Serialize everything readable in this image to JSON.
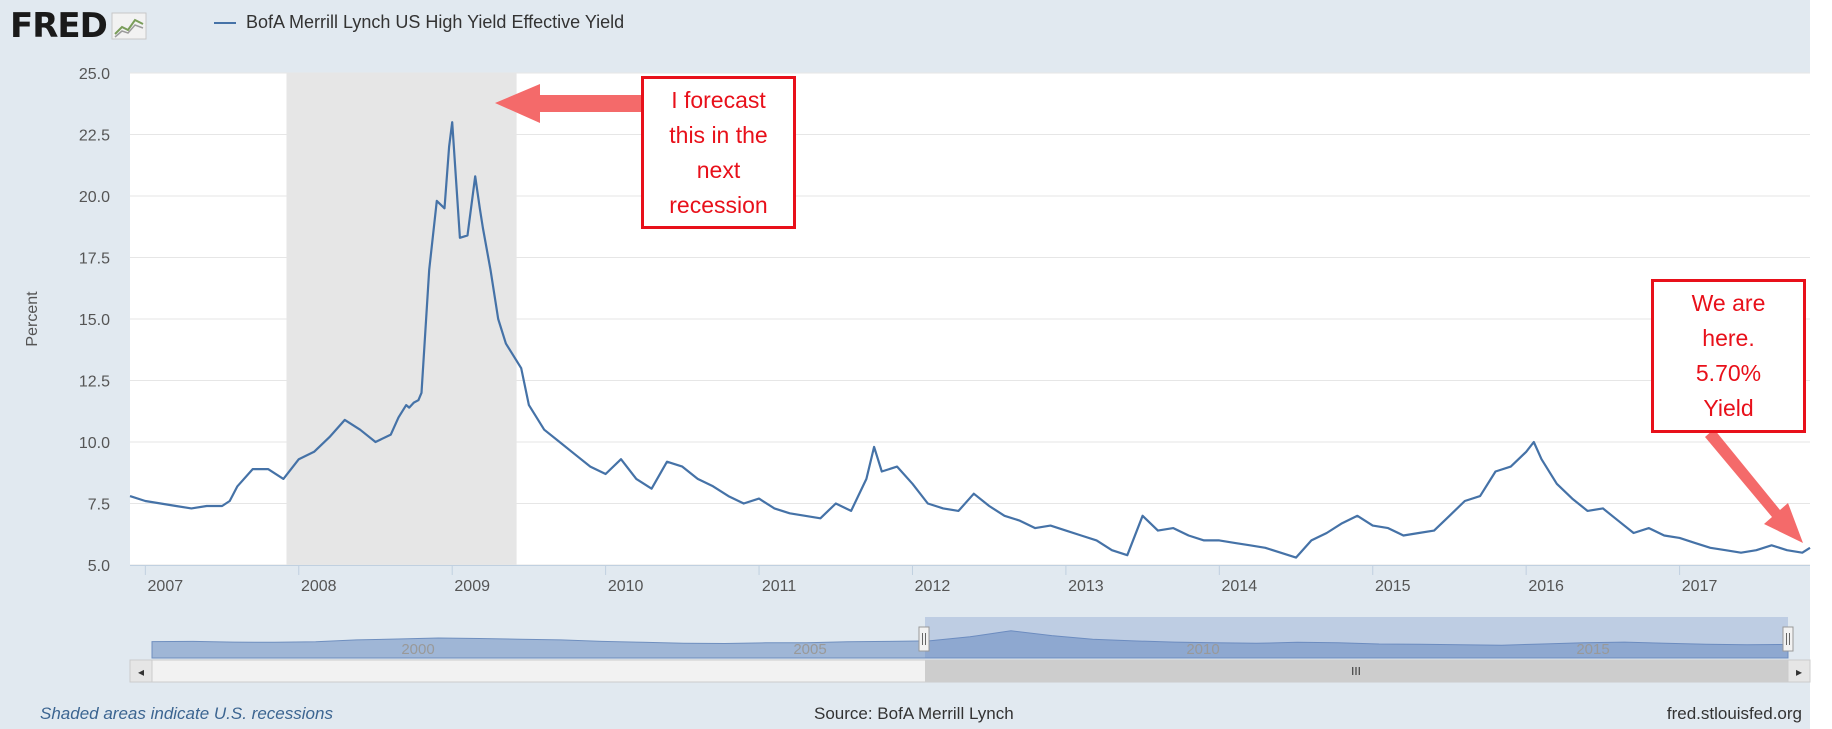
{
  "header": {
    "logo_text": "FRED",
    "logo_icon": "fred-chart-icon",
    "series_label": "BofA Merrill Lynch US High Yield Effective Yield"
  },
  "annotations": {
    "forecast_lines": [
      "I forecast",
      "this in the",
      "next",
      "recession"
    ],
    "current_lines": [
      "We are",
      "here.",
      "5.70%",
      "Yield"
    ]
  },
  "footer": {
    "note": "Shaded areas indicate U.S. recessions",
    "source": "Source: BofA Merrill Lynch",
    "site": "fred.stlouisfed.org"
  },
  "colors": {
    "series": "#4572a7",
    "recession": "#e6e6e6",
    "annotation": "#e8101a",
    "arrow": "#f46a6a",
    "frame": "#e1e9f0"
  },
  "navigator": {
    "labels": [
      "2000",
      "2005",
      "2010",
      "2015"
    ],
    "left_button": "◂",
    "right_button": "▸",
    "scroll_grip": "III"
  },
  "chart_data": {
    "type": "line",
    "title": "BofA Merrill Lynch US High Yield Effective Yield",
    "ylabel": "Percent",
    "xlabel": "",
    "ylim": [
      5.0,
      25.0
    ],
    "xlim": [
      2006.9,
      2017.85
    ],
    "y_ticks": [
      "5.0",
      "7.5",
      "10.0",
      "12.5",
      "15.0",
      "17.5",
      "20.0",
      "22.5",
      "25.0"
    ],
    "x_ticks": [
      "2007",
      "2008",
      "2009",
      "2010",
      "2011",
      "2012",
      "2013",
      "2014",
      "2015",
      "2016",
      "2017"
    ],
    "grid": true,
    "recessions": [
      [
        2007.92,
        2009.42
      ]
    ],
    "series": [
      {
        "name": "BofA Merrill Lynch US High Yield Effective Yield",
        "x": [
          2006.9,
          2007.0,
          2007.1,
          2007.2,
          2007.3,
          2007.4,
          2007.5,
          2007.55,
          2007.6,
          2007.7,
          2007.8,
          2007.9,
          2008.0,
          2008.1,
          2008.2,
          2008.3,
          2008.4,
          2008.5,
          2008.6,
          2008.65,
          2008.7,
          2008.72,
          2008.75,
          2008.78,
          2008.8,
          2008.85,
          2008.9,
          2008.95,
          2008.98,
          2009.0,
          2009.05,
          2009.1,
          2009.15,
          2009.18,
          2009.2,
          2009.25,
          2009.3,
          2009.35,
          2009.4,
          2009.45,
          2009.5,
          2009.6,
          2009.7,
          2009.8,
          2009.9,
          2010.0,
          2010.1,
          2010.2,
          2010.3,
          2010.4,
          2010.5,
          2010.6,
          2010.7,
          2010.8,
          2010.9,
          2011.0,
          2011.1,
          2011.2,
          2011.3,
          2011.4,
          2011.5,
          2011.6,
          2011.7,
          2011.75,
          2011.8,
          2011.9,
          2012.0,
          2012.1,
          2012.2,
          2012.3,
          2012.4,
          2012.5,
          2012.6,
          2012.7,
          2012.8,
          2012.9,
          2013.0,
          2013.1,
          2013.2,
          2013.3,
          2013.4,
          2013.5,
          2013.6,
          2013.7,
          2013.8,
          2013.9,
          2014.0,
          2014.1,
          2014.2,
          2014.3,
          2014.4,
          2014.5,
          2014.6,
          2014.7,
          2014.8,
          2014.9,
          2015.0,
          2015.1,
          2015.2,
          2015.3,
          2015.4,
          2015.5,
          2015.6,
          2015.7,
          2015.8,
          2015.9,
          2016.0,
          2016.05,
          2016.1,
          2016.2,
          2016.3,
          2016.4,
          2016.5,
          2016.6,
          2016.7,
          2016.8,
          2016.9,
          2017.0,
          2017.1,
          2017.2,
          2017.3,
          2017.4,
          2017.5,
          2017.6,
          2017.7,
          2017.8,
          2017.85
        ],
        "y": [
          7.8,
          7.6,
          7.5,
          7.4,
          7.3,
          7.4,
          7.4,
          7.6,
          8.2,
          8.9,
          8.9,
          8.5,
          9.3,
          9.6,
          10.2,
          10.9,
          10.5,
          10.0,
          10.3,
          11.0,
          11.5,
          11.4,
          11.6,
          11.7,
          12.0,
          17.0,
          19.8,
          19.5,
          22.0,
          23.0,
          18.3,
          18.4,
          20.8,
          19.5,
          18.7,
          17.0,
          15.0,
          14.0,
          13.5,
          13.0,
          11.5,
          10.5,
          10.0,
          9.5,
          9.0,
          8.7,
          9.3,
          8.5,
          8.1,
          9.2,
          9.0,
          8.5,
          8.2,
          7.8,
          7.5,
          7.7,
          7.3,
          7.1,
          7.0,
          6.9,
          7.5,
          7.2,
          8.5,
          9.8,
          8.8,
          9.0,
          8.3,
          7.5,
          7.3,
          7.2,
          7.9,
          7.4,
          7.0,
          6.8,
          6.5,
          6.6,
          6.4,
          6.2,
          6.0,
          5.6,
          5.4,
          7.0,
          6.4,
          6.5,
          6.2,
          6.0,
          6.0,
          5.9,
          5.8,
          5.7,
          5.5,
          5.3,
          6.0,
          6.3,
          6.7,
          7.0,
          6.6,
          6.5,
          6.2,
          6.3,
          6.4,
          7.0,
          7.6,
          7.8,
          8.8,
          9.0,
          9.6,
          10.0,
          9.3,
          8.3,
          7.7,
          7.2,
          7.3,
          6.8,
          6.3,
          6.5,
          6.2,
          6.1,
          5.9,
          5.7,
          5.6,
          5.5,
          5.6,
          5.8,
          5.6,
          5.5,
          5.7
        ]
      }
    ]
  }
}
